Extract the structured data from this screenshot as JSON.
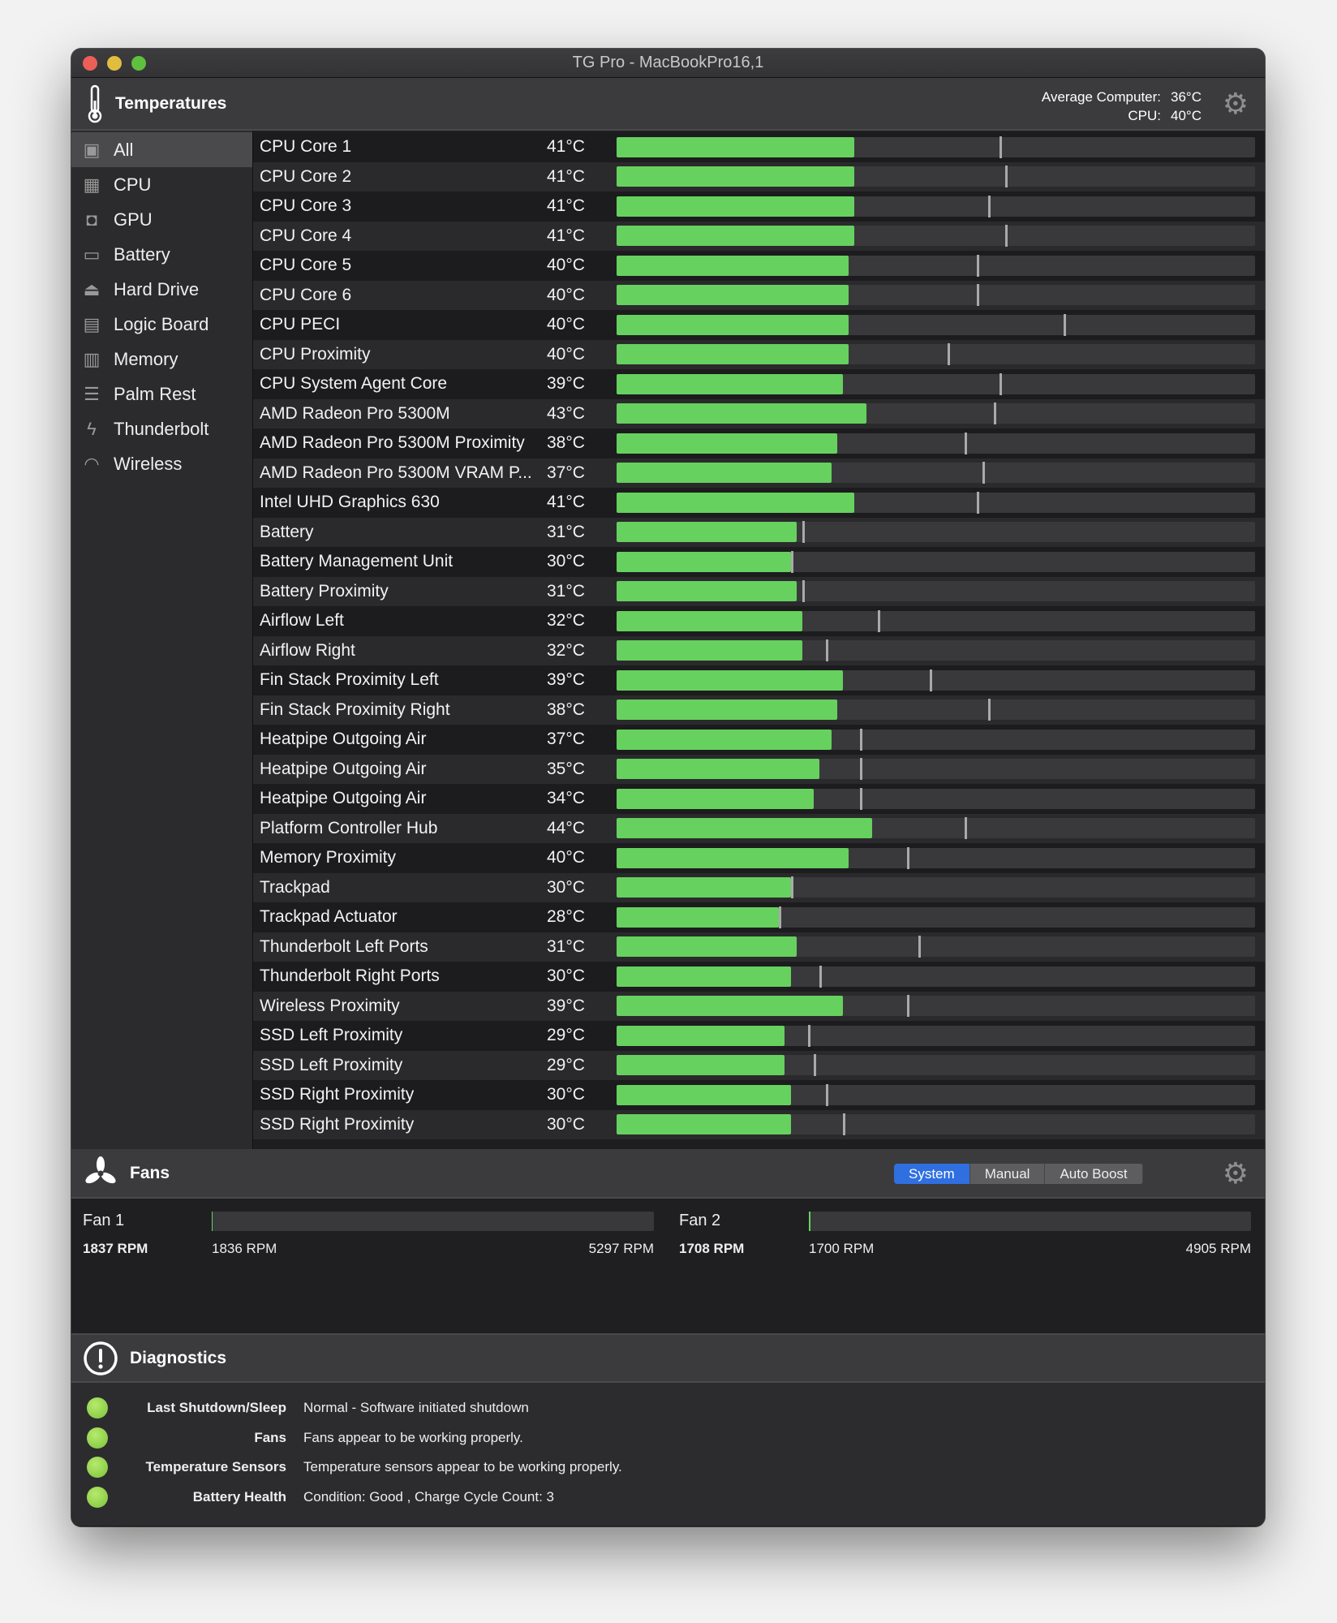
{
  "window": {
    "title": "TG Pro - MacBookPro16,1"
  },
  "temperatures": {
    "title": "Temperatures",
    "average_label": "Average Computer:",
    "average_value": "36°C",
    "cpu_label": "CPU:",
    "cpu_value": "40°C",
    "bar_scale_max_c": 110,
    "colors": {
      "fill": "#66d15e",
      "track": "#39393b",
      "marker": "#a9a9a9"
    }
  },
  "sidebar": {
    "items": [
      {
        "label": "All",
        "icon": "computer-icon",
        "selected": true
      },
      {
        "label": "CPU",
        "icon": "cpu-chip-icon"
      },
      {
        "label": "GPU",
        "icon": "gpu-icon"
      },
      {
        "label": "Battery",
        "icon": "battery-icon"
      },
      {
        "label": "Hard Drive",
        "icon": "hard-drive-icon"
      },
      {
        "label": "Logic Board",
        "icon": "logic-board-icon"
      },
      {
        "label": "Memory",
        "icon": "memory-icon"
      },
      {
        "label": "Palm Rest",
        "icon": "palm-rest-icon"
      },
      {
        "label": "Thunderbolt",
        "icon": "thunderbolt-icon"
      },
      {
        "label": "Wireless",
        "icon": "wireless-icon"
      }
    ]
  },
  "sensors": [
    {
      "name": "CPU Core 1",
      "temp": "41°C",
      "value": 41,
      "max": 66
    },
    {
      "name": "CPU Core 2",
      "temp": "41°C",
      "value": 41,
      "max": 67
    },
    {
      "name": "CPU Core 3",
      "temp": "41°C",
      "value": 41,
      "max": 64
    },
    {
      "name": "CPU Core 4",
      "temp": "41°C",
      "value": 41,
      "max": 67
    },
    {
      "name": "CPU Core 5",
      "temp": "40°C",
      "value": 40,
      "max": 62
    },
    {
      "name": "CPU Core 6",
      "temp": "40°C",
      "value": 40,
      "max": 62
    },
    {
      "name": "CPU PECI",
      "temp": "40°C",
      "value": 40,
      "max": 77
    },
    {
      "name": "CPU Proximity",
      "temp": "40°C",
      "value": 40,
      "max": 57
    },
    {
      "name": "CPU System Agent Core",
      "temp": "39°C",
      "value": 39,
      "max": 66
    },
    {
      "name": "AMD Radeon Pro 5300M",
      "temp": "43°C",
      "value": 43,
      "max": 65
    },
    {
      "name": "AMD Radeon Pro 5300M Proximity",
      "temp": "38°C",
      "value": 38,
      "max": 60
    },
    {
      "name": "AMD Radeon Pro 5300M VRAM P...",
      "temp": "37°C",
      "value": 37,
      "max": 63
    },
    {
      "name": "Intel UHD Graphics 630",
      "temp": "41°C",
      "value": 41,
      "max": 62
    },
    {
      "name": "Battery",
      "temp": "31°C",
      "value": 31,
      "max": 32
    },
    {
      "name": "Battery Management Unit",
      "temp": "30°C",
      "value": 30,
      "max": 30
    },
    {
      "name": "Battery Proximity",
      "temp": "31°C",
      "value": 31,
      "max": 32
    },
    {
      "name": "Airflow Left",
      "temp": "32°C",
      "value": 32,
      "max": 45
    },
    {
      "name": "Airflow Right",
      "temp": "32°C",
      "value": 32,
      "max": 36
    },
    {
      "name": "Fin Stack Proximity Left",
      "temp": "39°C",
      "value": 39,
      "max": 54
    },
    {
      "name": "Fin Stack Proximity Right",
      "temp": "38°C",
      "value": 38,
      "max": 64
    },
    {
      "name": "Heatpipe Outgoing Air",
      "temp": "37°C",
      "value": 37,
      "max": 42
    },
    {
      "name": "Heatpipe Outgoing Air",
      "temp": "35°C",
      "value": 35,
      "max": 42
    },
    {
      "name": "Heatpipe Outgoing Air",
      "temp": "34°C",
      "value": 34,
      "max": 42
    },
    {
      "name": "Platform Controller Hub",
      "temp": "44°C",
      "value": 44,
      "max": 60
    },
    {
      "name": "Memory Proximity",
      "temp": "40°C",
      "value": 40,
      "max": 50
    },
    {
      "name": "Trackpad",
      "temp": "30°C",
      "value": 30,
      "max": 30
    },
    {
      "name": "Trackpad Actuator",
      "temp": "28°C",
      "value": 28,
      "max": 28
    },
    {
      "name": "Thunderbolt Left Ports",
      "temp": "31°C",
      "value": 31,
      "max": 52
    },
    {
      "name": "Thunderbolt Right Ports",
      "temp": "30°C",
      "value": 30,
      "max": 35
    },
    {
      "name": "Wireless Proximity",
      "temp": "39°C",
      "value": 39,
      "max": 50
    },
    {
      "name": "SSD Left Proximity",
      "temp": "29°C",
      "value": 29,
      "max": 33
    },
    {
      "name": "SSD Left Proximity",
      "temp": "29°C",
      "value": 29,
      "max": 34
    },
    {
      "name": "SSD Right Proximity",
      "temp": "30°C",
      "value": 30,
      "max": 36
    },
    {
      "name": "SSD Right Proximity",
      "temp": "30°C",
      "value": 30,
      "max": 39
    }
  ],
  "fans": {
    "title": "Fans",
    "modes": [
      {
        "label": "System",
        "active": true
      },
      {
        "label": "Manual"
      },
      {
        "label": "Auto Boost"
      }
    ],
    "active_color": "#2f6fe0",
    "items": [
      {
        "label": "Fan 1",
        "current": "1837 RPM",
        "min": "1836 RPM",
        "max": "5297 RPM",
        "rpm": 1837,
        "min_rpm": 1836,
        "max_rpm": 5297
      },
      {
        "label": "Fan 2",
        "current": "1708 RPM",
        "min": "1700 RPM",
        "max": "4905 RPM",
        "rpm": 1708,
        "min_rpm": 1700,
        "max_rpm": 4905
      }
    ]
  },
  "diagnostics": {
    "title": "Diagnostics",
    "status_color": "#7cc23a",
    "items": [
      {
        "label": "Last Shutdown/Sleep",
        "value": "Normal - Software initiated shutdown",
        "status": "good"
      },
      {
        "label": "Fans",
        "value": "Fans appear to be working properly.",
        "status": "good"
      },
      {
        "label": "Temperature Sensors",
        "value": "Temperature sensors appear to be working properly.",
        "status": "good"
      },
      {
        "label": "Battery Health",
        "value": "Condition: Good , Charge Cycle Count: 3",
        "status": "good"
      }
    ]
  }
}
